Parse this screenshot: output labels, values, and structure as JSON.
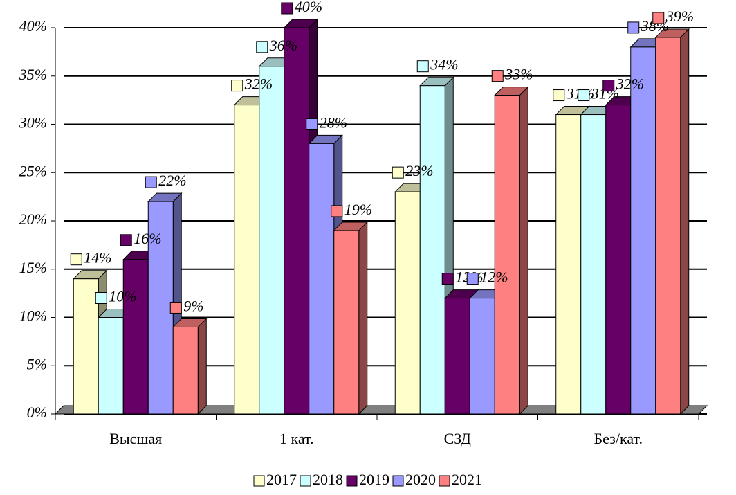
{
  "chart_data": {
    "type": "bar3d",
    "categories": [
      "Высшая",
      "1 кат.",
      "СЗД",
      "Без/кат."
    ],
    "series": [
      {
        "name": "2017",
        "color": "#ffffcc",
        "values": [
          14,
          32,
          23,
          31
        ],
        "value_labels": [
          "14%",
          "32%",
          "23%",
          "31%"
        ]
      },
      {
        "name": "2018",
        "color": "#ccffff",
        "values": [
          10,
          36,
          34,
          31
        ],
        "value_labels": [
          "10%",
          "36%",
          "34%",
          "31%"
        ]
      },
      {
        "name": "2019",
        "color": "#660066",
        "values": [
          16,
          40,
          12,
          32
        ],
        "value_labels": [
          "16%",
          "40%",
          "12%",
          "32%"
        ]
      },
      {
        "name": "2020",
        "color": "#9999ff",
        "values": [
          22,
          28,
          12,
          38
        ],
        "value_labels": [
          "22%",
          "28%",
          "12%",
          "38%"
        ]
      },
      {
        "name": "2021",
        "color": "#ff8080",
        "values": [
          9,
          19,
          33,
          39
        ],
        "value_labels": [
          "9%",
          "19%",
          "33%",
          "39%"
        ]
      }
    ],
    "ylim": [
      0,
      40
    ],
    "yticks": [
      {
        "value": 0,
        "label": "0%"
      },
      {
        "value": 5,
        "label": "5%"
      },
      {
        "value": 10,
        "label": "10%"
      },
      {
        "value": 15,
        "label": "15%"
      },
      {
        "value": 20,
        "label": "20%"
      },
      {
        "value": 25,
        "label": "25%"
      },
      {
        "value": 30,
        "label": "30%"
      },
      {
        "value": 35,
        "label": "35%"
      },
      {
        "value": 40,
        "label": "40%"
      }
    ],
    "grid": true,
    "legend": "bottom"
  }
}
